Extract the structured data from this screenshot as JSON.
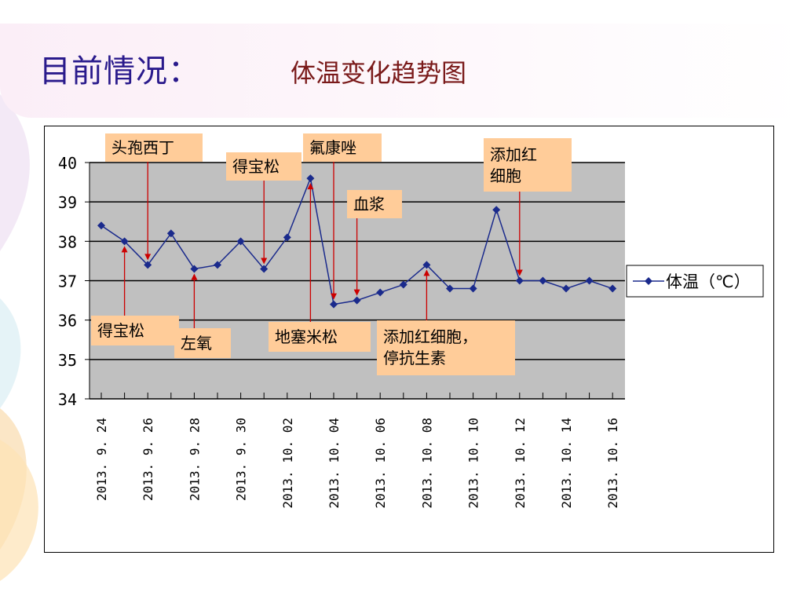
{
  "slide": {
    "title": "目前情况：",
    "subtitle": "体温变化趋势图"
  },
  "chart_data": {
    "type": "line",
    "x": [
      "2013.9.24",
      "2013.9.25",
      "2013.9.26",
      "2013.9.27",
      "2013.9.28",
      "2013.9.29",
      "2013.9.30",
      "2013.10.01",
      "2013.10.02",
      "2013.10.03",
      "2013.10.04",
      "2013.10.05",
      "2013.10.06",
      "2013.10.07",
      "2013.10.08",
      "2013.10.09",
      "2013.10.10",
      "2013.10.11",
      "2013.10.12",
      "2013.10.13",
      "2013.10.14",
      "2013.10.15",
      "2013.10.16"
    ],
    "tick_labels": [
      "2013. 9. 24",
      "2013. 9. 26",
      "2013. 9. 28",
      "2013. 9. 30",
      "2013. 10. 02",
      "2013. 10. 04",
      "2013. 10. 06",
      "2013. 10. 08",
      "2013. 10. 10",
      "2013. 10. 12",
      "2013. 10. 14",
      "2013. 10. 16"
    ],
    "series": [
      {
        "name": "体温（℃）",
        "color": "#1a2a8c",
        "values": [
          38.4,
          38.0,
          37.4,
          38.2,
          37.3,
          37.4,
          38.0,
          37.3,
          38.1,
          39.6,
          36.4,
          36.5,
          36.7,
          36.9,
          37.4,
          36.8,
          36.8,
          38.8,
          37.0,
          37.0,
          36.8,
          37.0,
          36.8
        ]
      }
    ],
    "ylim": [
      34,
      40
    ],
    "yticks": [
      34,
      35,
      36,
      37,
      38,
      39,
      40
    ],
    "grid": true,
    "plot_background": "#c0c0c0",
    "legend_placement": "right",
    "annotations": [
      {
        "text": "头孢西丁",
        "date": "2013.9.26"
      },
      {
        "text": "得宝松",
        "date": "2013.10.01"
      },
      {
        "text": "氟康唑",
        "date": "2013.10.04"
      },
      {
        "text": "添加红细胞",
        "date": "2013.10.12"
      },
      {
        "text": "血浆",
        "date": "2013.10.05"
      },
      {
        "text": "得宝松",
        "date": "2013.9.25"
      },
      {
        "text": "左氧",
        "date": "2013.9.28"
      },
      {
        "text": "地塞米松",
        "date": "2013.10.03"
      },
      {
        "text": "添加红细胞，停抗生素",
        "date": "2013.10.08"
      }
    ]
  }
}
